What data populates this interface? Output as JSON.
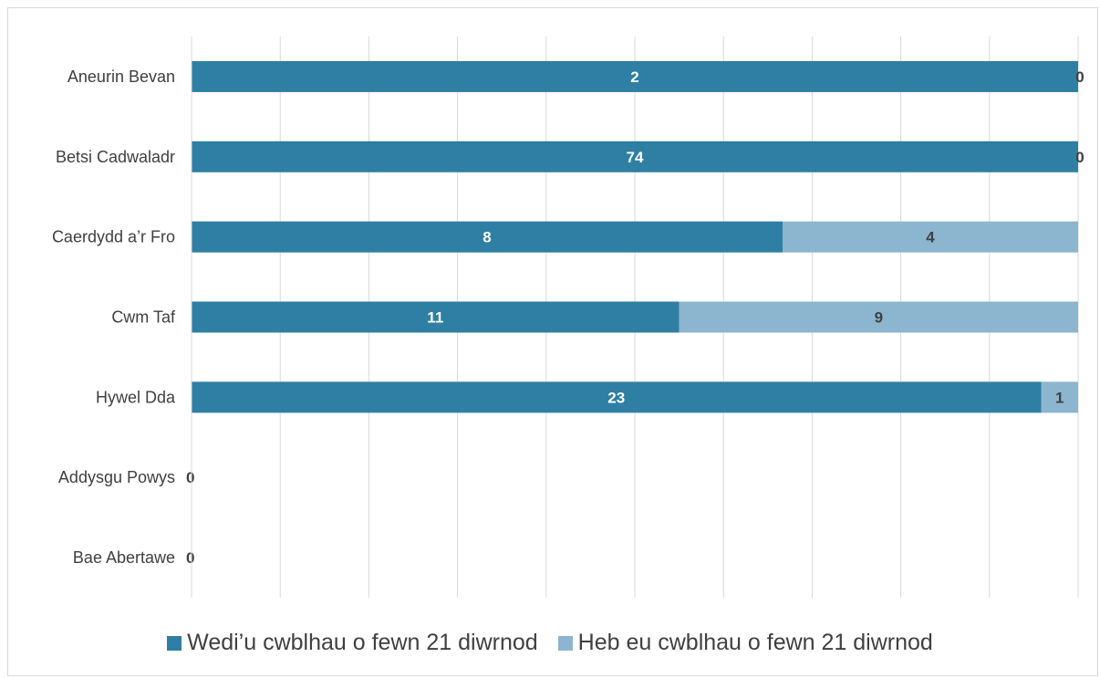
{
  "chart_data": {
    "type": "bar",
    "orientation": "horizontal",
    "stacked": true,
    "percent_stacked": true,
    "categories": [
      "Aneurin Bevan",
      "Betsi Cadwaladr",
      "Caerdydd a’r Fro",
      "Cwm Taf ",
      "Hywel Dda",
      "Addysgu Powys",
      "Bae Abertawe"
    ],
    "series": [
      {
        "name": "Wedi’u cwblhau o fewn 21 diwrnod",
        "values": [
          2,
          74,
          8,
          11,
          23,
          0,
          0
        ],
        "color": "#2e7fa3"
      },
      {
        "name": "Heb eu cwblhau o fewn 21 diwrnod",
        "values": [
          0,
          0,
          4,
          9,
          1,
          0,
          0
        ],
        "color": "#8cb5cf"
      }
    ],
    "data_labels": [
      [
        "2",
        "74",
        "8",
        "11",
        "23",
        "0",
        "0"
      ],
      [
        "0",
        "0",
        "4",
        "9",
        "1",
        "",
        ""
      ]
    ],
    "title": "",
    "xlabel": "",
    "ylabel": "",
    "grid": true,
    "gridlines": 10,
    "legend_position": "bottom"
  }
}
